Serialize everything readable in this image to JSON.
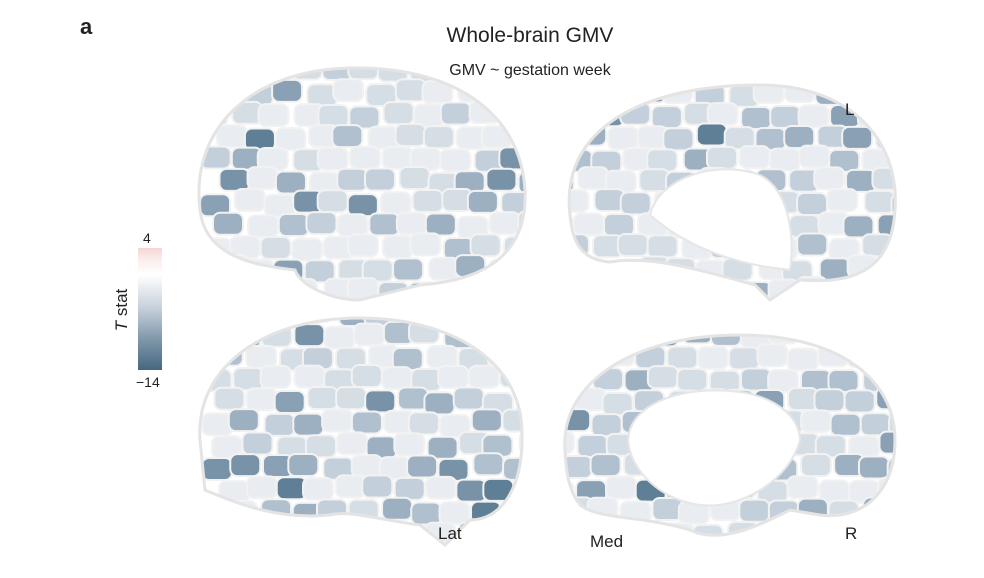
{
  "panel_label": "a",
  "title": "Whole-brain GMV",
  "subtitle": "GMV ~ gestation week",
  "colorbar": {
    "label_italic": "T",
    "label": "stat",
    "max": "4",
    "min": "−14",
    "colors": {
      "high": "#f4d6d4",
      "zero": "#ffffff",
      "low": "#46677f"
    }
  },
  "views": {
    "lateral": "Lat",
    "medial": "Med",
    "left": "L",
    "right": "R"
  }
}
